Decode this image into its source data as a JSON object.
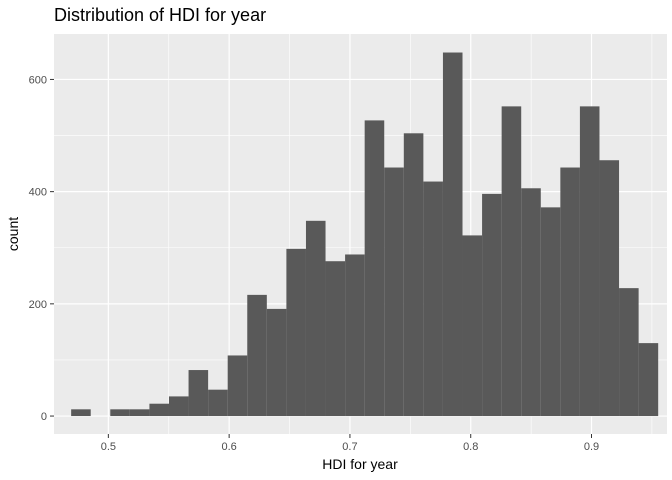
{
  "chart_data": {
    "type": "bar",
    "title": "Distribution of HDI for year",
    "xlabel": "HDI for year",
    "ylabel": "count",
    "bin_width": 0.0162,
    "bin_start": 0.4692,
    "values": [
      12,
      0,
      12,
      12,
      22,
      35,
      82,
      47,
      108,
      216,
      191,
      298,
      348,
      276,
      288,
      527,
      443,
      504,
      418,
      648,
      322,
      396,
      552,
      406,
      372,
      443,
      552,
      456,
      228,
      130
    ],
    "xlim": [
      0.455,
      0.9625
    ],
    "ylim": [
      -32,
      681
    ],
    "x_ticks": [
      0.5,
      0.6,
      0.7,
      0.8,
      0.9
    ],
    "x_tick_labels": [
      "0.5",
      "0.6",
      "0.7",
      "0.8",
      "0.9"
    ],
    "y_ticks": [
      0,
      200,
      400,
      600
    ],
    "y_tick_labels": [
      "0",
      "200",
      "400",
      "600"
    ],
    "grid": true,
    "colors": {
      "panel_bg": "#ebebeb",
      "grid_major": "#ffffff",
      "bar_fill": "#595959",
      "tick_text": "#4d4d4d",
      "tick_mark": "#333333"
    }
  }
}
